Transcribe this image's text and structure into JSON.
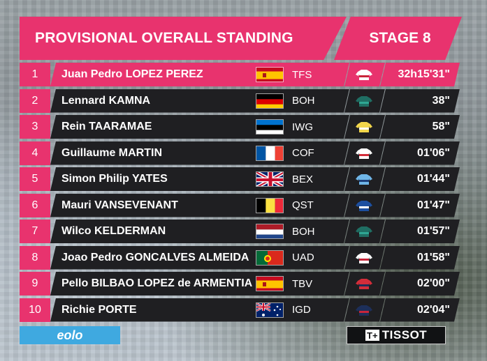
{
  "header": {
    "title": "PROVISIONAL OVERALL STANDING",
    "stage": "STAGE 8"
  },
  "colors": {
    "accent": "#e8336e",
    "row_bg": "#1f1f22",
    "eolo_blue": "#3fa9e0"
  },
  "standings": [
    {
      "pos": "1",
      "name": "Juan Pedro LOPEZ PEREZ",
      "flag": "es",
      "team": "TFS",
      "jersey": "jersey-icon",
      "jersey_colors": [
        "#ffffff",
        "#c9253a"
      ],
      "time": "32h15'31\""
    },
    {
      "pos": "2",
      "name": "Lennard KAMNA",
      "flag": "de",
      "team": "BOH",
      "jersey": "jersey-icon",
      "jersey_colors": [
        "#1f6e63",
        "#2fa693"
      ],
      "time": "38\""
    },
    {
      "pos": "3",
      "name": "Rein TAARAMAE",
      "flag": "ee",
      "team": "IWG",
      "jersey": "jersey-icon",
      "jersey_colors": [
        "#f2d64b",
        "#ffffff"
      ],
      "time": "58\""
    },
    {
      "pos": "4",
      "name": "Guillaume MARTIN",
      "flag": "fr",
      "team": "COF",
      "jersey": "jersey-icon",
      "jersey_colors": [
        "#ffffff",
        "#d32d3a"
      ],
      "time": "01'06\""
    },
    {
      "pos": "5",
      "name": "Simon Philip YATES",
      "flag": "gb",
      "team": "BEX",
      "jersey": "jersey-icon",
      "jersey_colors": [
        "#6fb6e8",
        "#1d3f7a"
      ],
      "time": "01'44\""
    },
    {
      "pos": "6",
      "name": "Mauri VANSEVENANT",
      "flag": "be",
      "team": "QST",
      "jersey": "jersey-icon",
      "jersey_colors": [
        "#1c4fa0",
        "#ffffff"
      ],
      "time": "01'47\""
    },
    {
      "pos": "7",
      "name": "Wilco KELDERMAN",
      "flag": "nl",
      "team": "BOH",
      "jersey": "jersey-icon",
      "jersey_colors": [
        "#1f6e63",
        "#2fa693"
      ],
      "time": "01'57\""
    },
    {
      "pos": "8",
      "name": "Joao Pedro GONCALVES ALMEIDA",
      "flag": "pt",
      "team": "UAD",
      "jersey": "jersey-icon",
      "jersey_colors": [
        "#ffffff",
        "#c9253a"
      ],
      "time": "01'58\""
    },
    {
      "pos": "9",
      "name": "Pello BILBAO LOPEZ de ARMENTIA",
      "flag": "es",
      "team": "TBV",
      "jersey": "jersey-icon",
      "jersey_colors": [
        "#d32d3a",
        "#1d2f5a"
      ],
      "time": "02'00\""
    },
    {
      "pos": "10",
      "name": "Richie PORTE",
      "flag": "au",
      "team": "IGD",
      "jersey": "jersey-icon",
      "jersey_colors": [
        "#1d2f5a",
        "#c9253a"
      ],
      "time": "02'04\""
    }
  ],
  "sponsors": {
    "eolo": "eolo",
    "tissot_mark": "T+",
    "tissot": "TISSOT"
  }
}
